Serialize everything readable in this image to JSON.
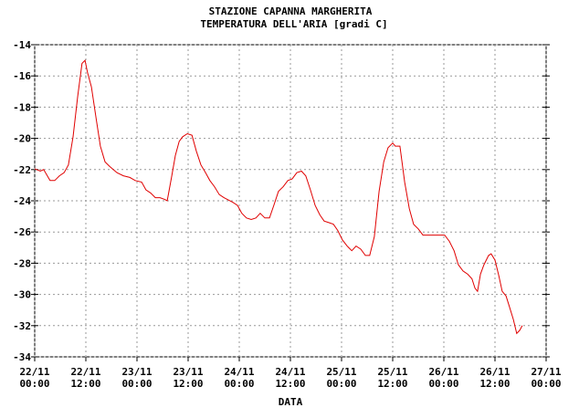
{
  "chart_data": {
    "type": "line",
    "title": "STAZIONE CAPANNA MARGHERITA",
    "subtitle": "TEMPERATURA DELL'ARIA [gradi C]",
    "xlabel": "DATA",
    "grid": true,
    "xlim": [
      0,
      120
    ],
    "xticks": [
      {
        "value": 0,
        "label": "22/11 00:00"
      },
      {
        "value": 12,
        "label": "22/11 12:00"
      },
      {
        "value": 24,
        "label": "23/11 00:00"
      },
      {
        "value": 36,
        "label": "23/11 12:00"
      },
      {
        "value": 48,
        "label": "24/11 00:00"
      },
      {
        "value": 60,
        "label": "24/11 12:00"
      },
      {
        "value": 72,
        "label": "25/11 00:00"
      },
      {
        "value": 84,
        "label": "25/11 12:00"
      },
      {
        "value": 96,
        "label": "26/11 00:00"
      },
      {
        "value": 108,
        "label": "26/11 12:00"
      },
      {
        "value": 120,
        "label": "27/11 00:00"
      }
    ],
    "ylim": [
      -34,
      -14
    ],
    "yticks": [
      -14,
      -16,
      -18,
      -20,
      -22,
      -24,
      -26,
      -28,
      -30,
      -32,
      -34
    ],
    "x": [
      0,
      1.3,
      2.1,
      3.6,
      4.7,
      5.8,
      6.9,
      7.9,
      9.0,
      10.1,
      11.1,
      11.8,
      12.4,
      13.3,
      14.4,
      15.4,
      16.5,
      17.6,
      19.3,
      20.8,
      22.3,
      23.6,
      25.1,
      26.1,
      27.2,
      28.3,
      29.4,
      30.4,
      31.1,
      32.1,
      33.0,
      33.9,
      34.7,
      35.8,
      36.9,
      37.9,
      39.0,
      40.1,
      41.1,
      42.2,
      43.3,
      44.4,
      46.5,
      47.6,
      48.6,
      49.7,
      50.8,
      51.9,
      52.9,
      54.0,
      55.1,
      56.1,
      57.2,
      58.3,
      59.4,
      60.4,
      61.5,
      62.6,
      63.6,
      64.7,
      65.8,
      66.9,
      67.9,
      69.0,
      70.1,
      71.1,
      72.2,
      73.3,
      74.4,
      75.4,
      76.5,
      77.6,
      78.6,
      79.7,
      80.8,
      81.9,
      82.9,
      84.0,
      84.6,
      85.7,
      86.8,
      87.9,
      88.9,
      90.0,
      91.1,
      92.6,
      94.7,
      96.2,
      97.3,
      98.4,
      99.4,
      100.5,
      101.6,
      102.6,
      103.3,
      103.9,
      104.6,
      105.4,
      106.5,
      107.1,
      108.0,
      108.9,
      109.7,
      110.6,
      111.4,
      112.3,
      113.1,
      113.8,
      114.4
    ],
    "series": [
      {
        "color": "#e00000",
        "values": [
          -21.95,
          -22.1,
          -22.0,
          -22.7,
          -22.7,
          -22.4,
          -22.2,
          -21.7,
          -19.9,
          -17.3,
          -15.2,
          -15.0,
          -15.8,
          -16.7,
          -18.7,
          -20.5,
          -21.5,
          -21.8,
          -22.2,
          -22.4,
          -22.5,
          -22.7,
          -22.8,
          -23.3,
          -23.5,
          -23.8,
          -23.8,
          -23.9,
          -24.0,
          -22.5,
          -21.1,
          -20.2,
          -19.9,
          -19.7,
          -19.8,
          -20.8,
          -21.7,
          -22.2,
          -22.7,
          -23.1,
          -23.6,
          -23.8,
          -24.1,
          -24.3,
          -24.8,
          -25.1,
          -25.2,
          -25.1,
          -24.8,
          -25.1,
          -25.1,
          -24.3,
          -23.4,
          -23.1,
          -22.7,
          -22.6,
          -22.2,
          -22.1,
          -22.4,
          -23.3,
          -24.3,
          -24.9,
          -25.3,
          -25.4,
          -25.5,
          -25.9,
          -26.5,
          -26.9,
          -27.2,
          -26.9,
          -27.1,
          -27.5,
          -27.5,
          -26.3,
          -23.4,
          -21.5,
          -20.6,
          -20.3,
          -20.5,
          -20.5,
          -22.8,
          -24.5,
          -25.5,
          -25.8,
          -26.2,
          -26.2,
          -26.2,
          -26.2,
          -26.6,
          -27.2,
          -28.1,
          -28.5,
          -28.7,
          -29.0,
          -29.6,
          -29.8,
          -28.7,
          -28.1,
          -27.5,
          -27.4,
          -27.8,
          -28.8,
          -29.8,
          -30.1,
          -30.8,
          -31.6,
          -32.5,
          -32.3,
          -32.0
        ]
      }
    ]
  }
}
